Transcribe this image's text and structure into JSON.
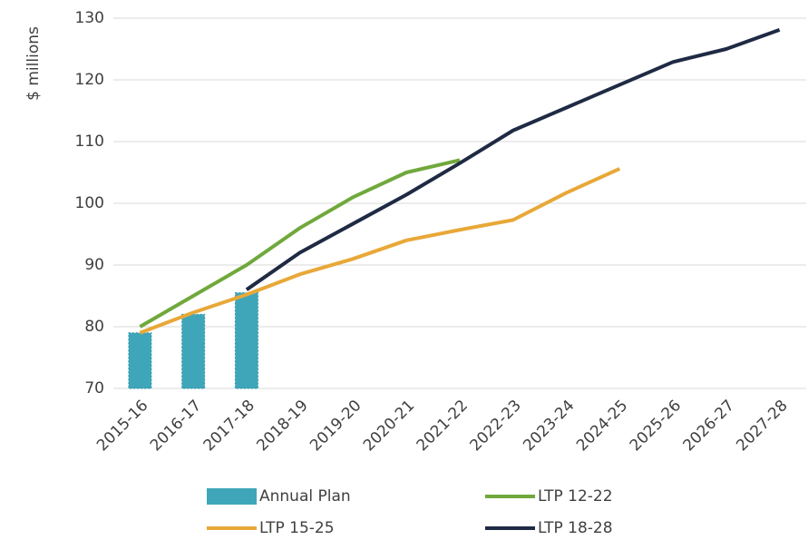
{
  "chart_data": {
    "type": "bar+line",
    "y_label": "$ millions",
    "categories": [
      "2015-16",
      "2016-17",
      "2017-18",
      "2018-19",
      "2019-20",
      "2020-21",
      "2021-22",
      "2022-23",
      "2023-24",
      "2024-25",
      "2025-26",
      "2026-27",
      "2027-28"
    ],
    "series": [
      {
        "name": "Annual Plan",
        "type": "bar",
        "color": "#3fa6ba",
        "values": [
          79,
          82,
          85.5,
          null,
          null,
          null,
          null,
          null,
          null,
          null,
          null,
          null,
          null
        ]
      },
      {
        "name": "LTP 12-22",
        "type": "line",
        "color": "#70a83c",
        "values": [
          80,
          85,
          90,
          96,
          101,
          105,
          107,
          null,
          null,
          null,
          null,
          null,
          null
        ]
      },
      {
        "name": "LTP 15-25",
        "type": "line",
        "color": "#e8a838",
        "values": [
          79,
          82.3,
          85.2,
          88.5,
          91,
          94,
          95.7,
          97.3,
          101.7,
          105.6,
          null,
          null,
          null
        ]
      },
      {
        "name": "LTP 18-28",
        "type": "line",
        "color": "#1f2a44",
        "values": [
          null,
          null,
          86,
          92,
          96.7,
          101.4,
          106.5,
          111.8,
          115.5,
          119.2,
          122.9,
          125,
          128.1
        ]
      }
    ],
    "ylim": [
      70,
      130
    ],
    "yticks": [
      70,
      80,
      90,
      100,
      110,
      120,
      130
    ],
    "grid": true,
    "legend": "bottom"
  }
}
